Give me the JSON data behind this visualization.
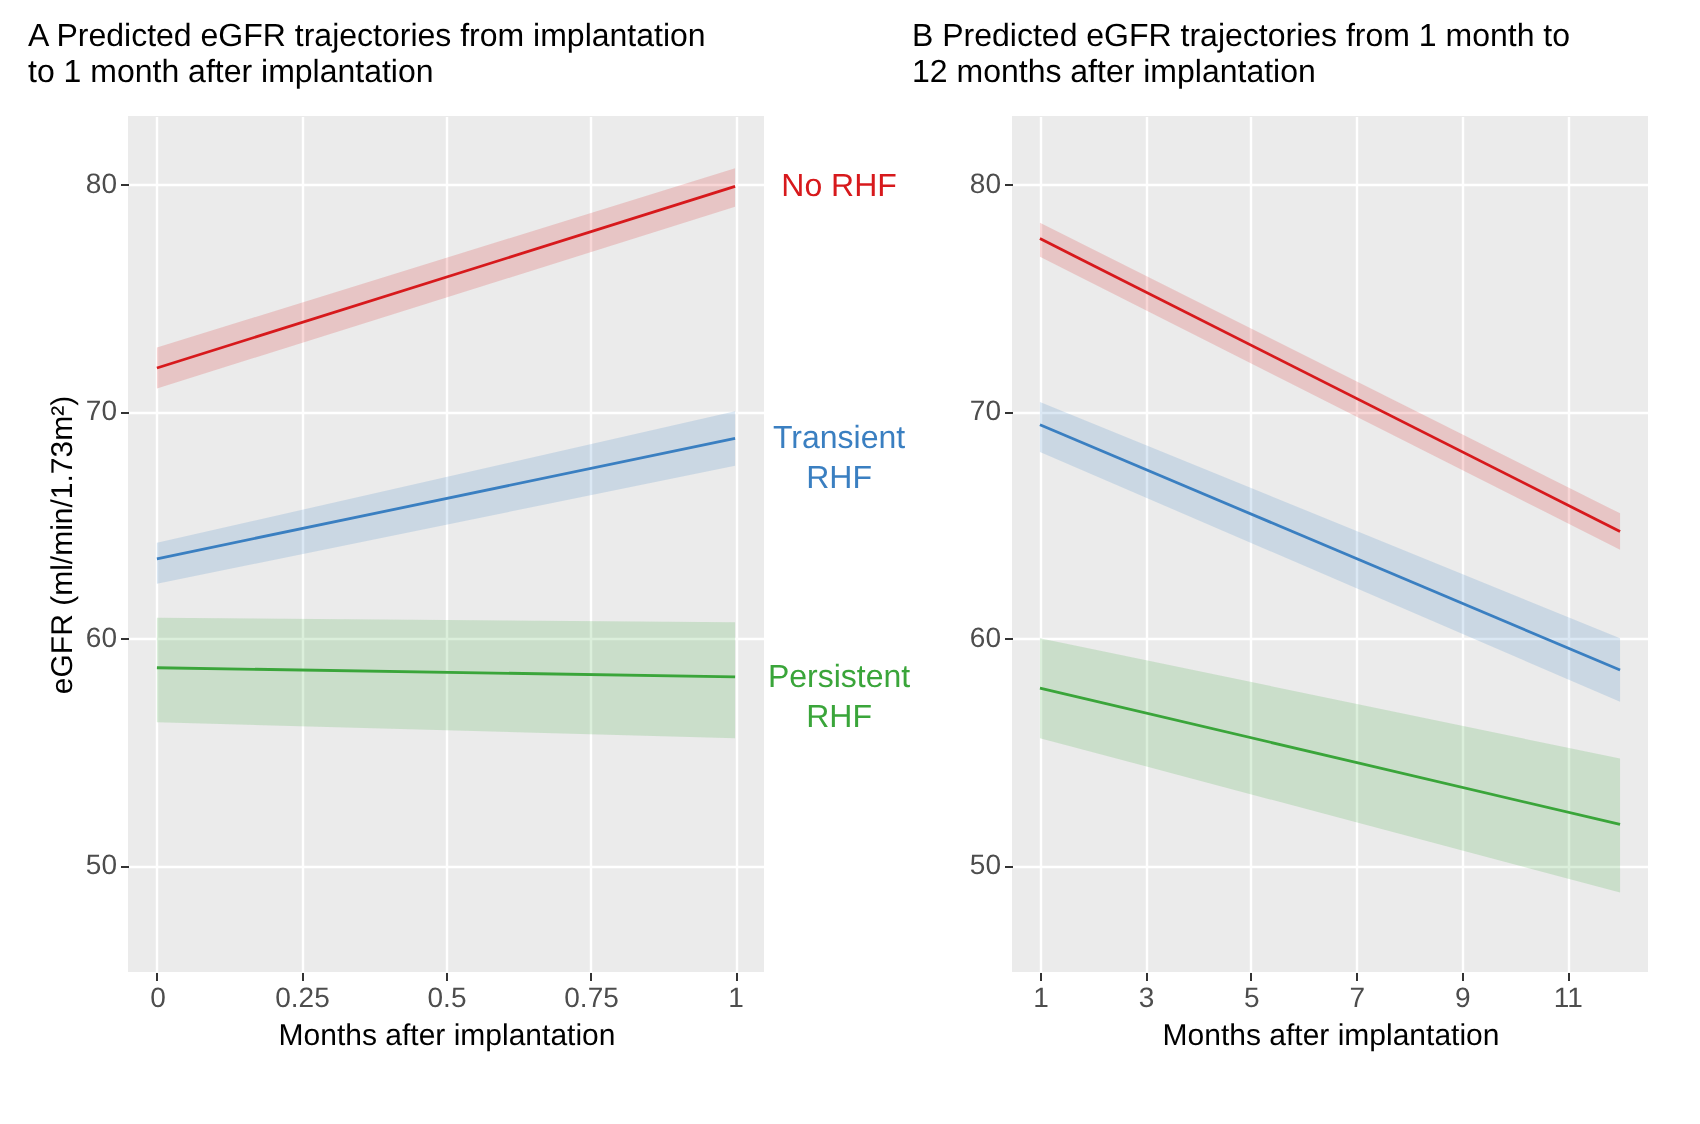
{
  "chart_data": [
    {
      "type": "line",
      "title": "A Predicted eGFR trajectories from implantation to 1 month after implantation",
      "xlabel": "Months after implantation",
      "ylabel": "eGFR (ml/min/1.73m²)",
      "x": [
        0,
        1
      ],
      "xlim": [
        -0.05,
        1.05
      ],
      "xticks": [
        0,
        0.25,
        0.5,
        0.75,
        1
      ],
      "ylim": [
        45.3,
        83
      ],
      "yticks": [
        50,
        60,
        70,
        80
      ],
      "grid": true,
      "series": [
        {
          "name": "No RHF",
          "color": "#d7191c",
          "values": [
            71.9,
            79.9
          ],
          "lower": [
            71.0,
            79.0
          ],
          "upper": [
            72.8,
            80.7
          ]
        },
        {
          "name": "Transient RHF",
          "color": "#3a7fc1",
          "values": [
            63.5,
            68.8
          ],
          "lower": [
            62.4,
            67.6
          ],
          "upper": [
            64.2,
            70.0
          ]
        },
        {
          "name": "Persistent RHF",
          "color": "#3aa53a",
          "values": [
            58.7,
            58.3
          ],
          "lower": [
            56.3,
            55.6
          ],
          "upper": [
            60.9,
            60.7
          ]
        }
      ]
    },
    {
      "type": "line",
      "title": "B Predicted eGFR trajectories from 1 month to 12 months after implantation",
      "xlabel": "Months after implantation",
      "x": [
        1,
        12
      ],
      "xlim": [
        0.47,
        12.53
      ],
      "xticks": [
        1,
        3,
        5,
        7,
        9,
        11
      ],
      "ylim": [
        45.3,
        83
      ],
      "yticks": [
        50,
        60,
        70,
        80
      ],
      "grid": true,
      "series": [
        {
          "color": "#d7191c",
          "values": [
            77.6,
            64.7
          ],
          "lower": [
            76.8,
            63.9
          ],
          "upper": [
            78.3,
            65.5
          ]
        },
        {
          "color": "#3a7fc1",
          "values": [
            69.4,
            58.6
          ],
          "lower": [
            68.2,
            57.2
          ],
          "upper": [
            70.4,
            60.0
          ]
        },
        {
          "color": "#3aa53a",
          "values": [
            57.8,
            51.8
          ],
          "lower": [
            55.6,
            48.8
          ],
          "upper": [
            60.0,
            54.7
          ]
        }
      ]
    }
  ]
}
